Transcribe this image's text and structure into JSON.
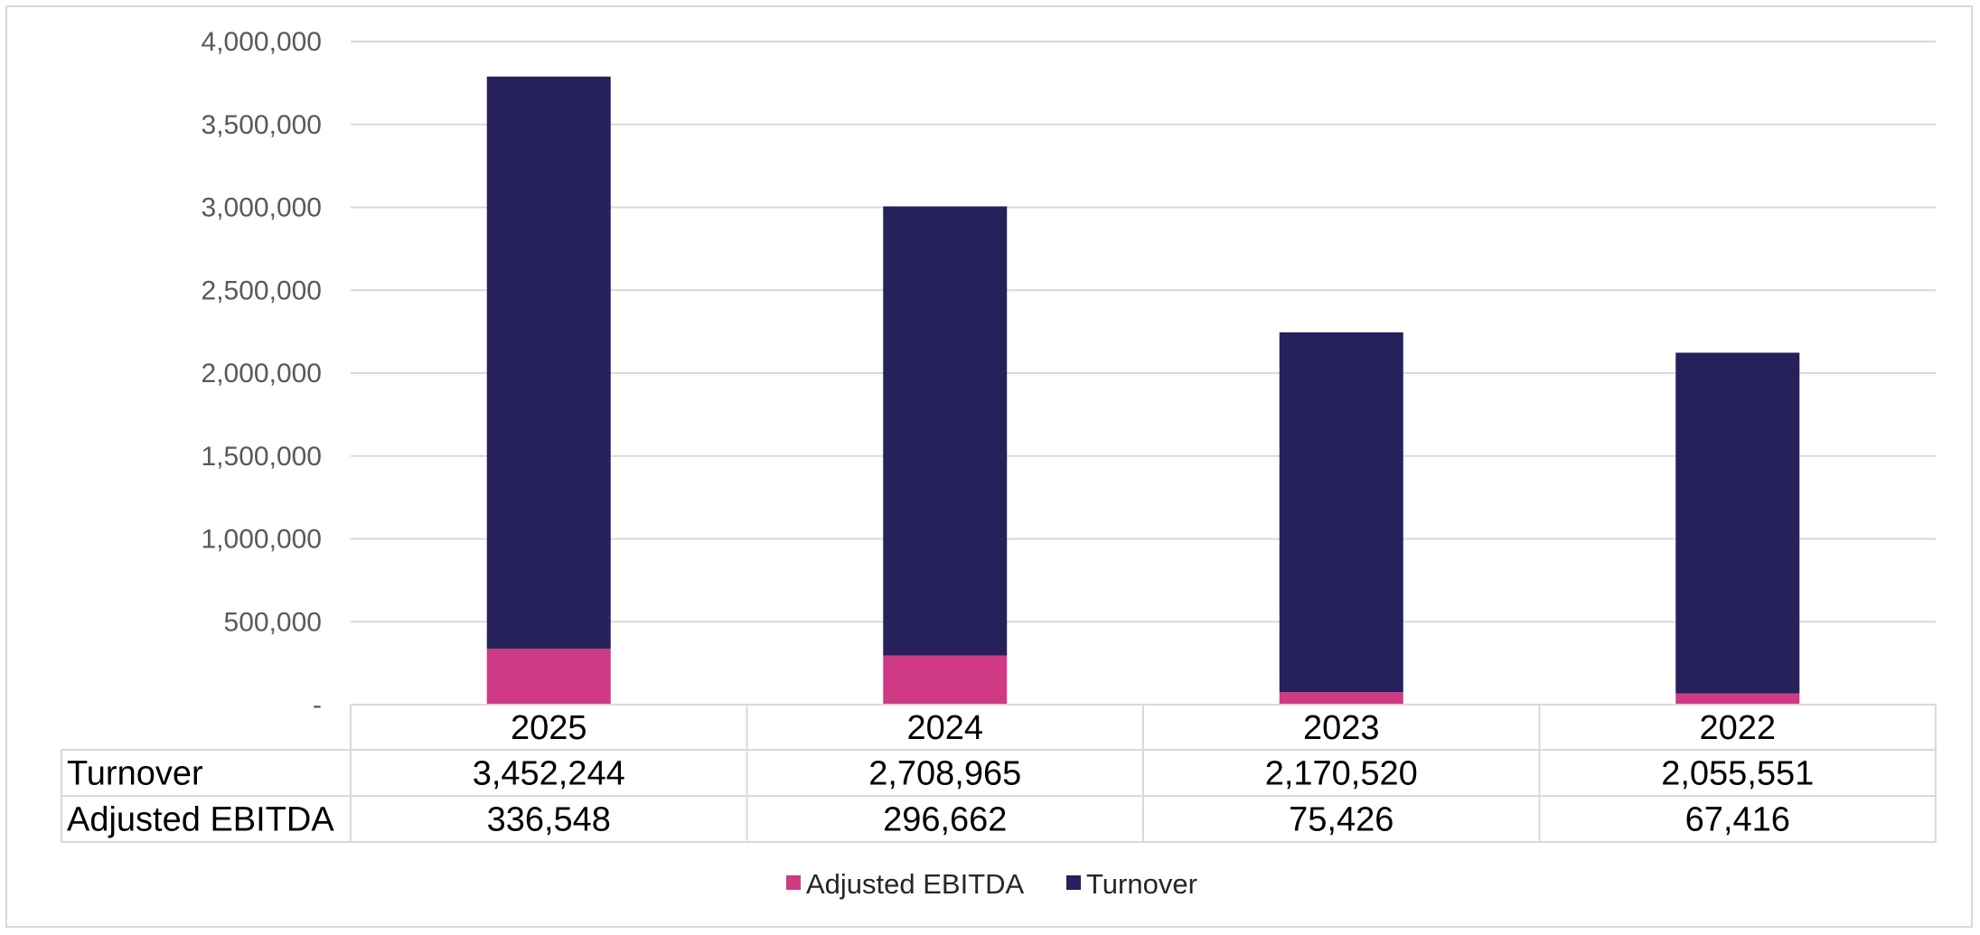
{
  "chart_data": {
    "type": "bar",
    "stacked": true,
    "categories": [
      "2025",
      "2024",
      "2023",
      "2022"
    ],
    "series": [
      {
        "name": "Adjusted EBITDA",
        "values": [
          336548,
          296662,
          75426,
          67416
        ],
        "color": "#D03A85"
      },
      {
        "name": "Turnover",
        "values": [
          3452244,
          2708965,
          2170520,
          2055551
        ],
        "color": "#26215B"
      }
    ],
    "yticks": [
      "-",
      "500,000",
      "1,000,000",
      "1,500,000",
      "2,000,000",
      "2,500,000",
      "3,000,000",
      "3,500,000",
      "4,000,000"
    ],
    "ylim": [
      0,
      4000000
    ],
    "grid": true,
    "legend_position": "bottom",
    "data_table": {
      "rows": [
        {
          "label": "Turnover",
          "values": [
            "3,452,244",
            "2,708,965",
            "2,170,520",
            "2,055,551"
          ]
        },
        {
          "label": "Adjusted EBITDA",
          "values": [
            "336,548",
            "296,662",
            "75,426",
            "67,416"
          ]
        }
      ]
    },
    "legend": [
      "Adjusted EBITDA",
      "Turnover"
    ]
  }
}
